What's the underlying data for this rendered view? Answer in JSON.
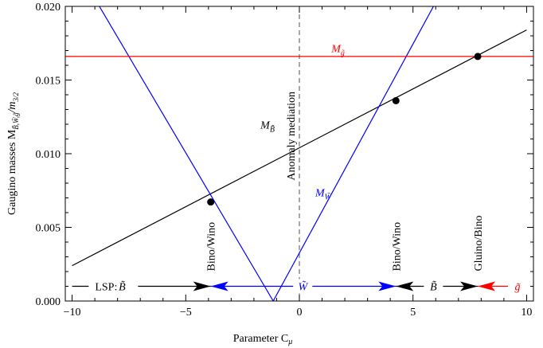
{
  "chart_data": {
    "type": "line",
    "xlabel": "Parameter C",
    "xlabel_sub": "μ",
    "ylabel": "Gaugino masses M",
    "ylabel_sub": "B̃,W̃,g̃",
    "ylabel_suffix": "/m",
    "ylabel_suffix_sub": "3/2",
    "xlim": [
      -10.3,
      10.3
    ],
    "ylim": [
      0,
      0.02
    ],
    "x_ticks": [
      {
        "value": -10,
        "label": "−10"
      },
      {
        "value": -5,
        "label": "−5"
      },
      {
        "value": 0,
        "label": "0"
      },
      {
        "value": 5,
        "label": "5"
      },
      {
        "value": 10,
        "label": "10"
      }
    ],
    "y_ticks": [
      {
        "value": 0.0,
        "label": "0.000"
      },
      {
        "value": 0.005,
        "label": "0.005"
      },
      {
        "value": 0.01,
        "label": "0.010"
      },
      {
        "value": 0.015,
        "label": "0.015"
      },
      {
        "value": 0.02,
        "label": "0.020"
      }
    ],
    "series": [
      {
        "name": "M_B̃",
        "label_main": "M",
        "label_sub": "B̃",
        "color": "#000000",
        "x": [
          -10,
          10
        ],
        "y": [
          0.0024,
          0.0184
        ],
        "label_at": [
          -1.4,
          0.0117
        ]
      },
      {
        "name": "M_W̃",
        "label_main": "M",
        "label_sub": "W̃",
        "color": "#0000ff",
        "x": [
          -8.8,
          -1.15,
          5.9
        ],
        "y": [
          0.02,
          0.0,
          0.02
        ],
        "label_at": [
          1.05,
          0.0071
        ]
      },
      {
        "name": "M_g̃",
        "label_main": "M",
        "label_sub": "g̃",
        "color": "#ff0000",
        "x": [
          -10.3,
          10.3
        ],
        "y": [
          0.0166,
          0.0166
        ],
        "label_at": [
          1.7,
          0.0169
        ]
      }
    ],
    "crossing_points": [
      {
        "x": -3.9,
        "y": 0.00672
      },
      {
        "x": 4.25,
        "y": 0.0136
      },
      {
        "x": 7.85,
        "y": 0.0166
      }
    ],
    "vertical_line": {
      "x": 0,
      "label": "Anomaly mediation",
      "style": "dashed",
      "color": "#555555"
    },
    "transition_labels": [
      {
        "x": -3.9,
        "text": "Bino/Wino"
      },
      {
        "x": 4.25,
        "text": "Bino/Wino"
      },
      {
        "x": 7.85,
        "text": "Gluino/Bino"
      }
    ],
    "lsp_bar": {
      "y": 0.001,
      "prefix": "LSP: ",
      "segments": [
        {
          "from": -10,
          "to": -3.9,
          "color": "#000000",
          "label": "B̃",
          "label_x": -7.8
        },
        {
          "from": -3.9,
          "to": 4.25,
          "color": "#0000ff",
          "label": "W̃",
          "label_x": 0.15
        },
        {
          "from": 4.25,
          "to": 7.85,
          "color": "#000000",
          "label": "B̃",
          "label_x": 5.9
        },
        {
          "from": 7.85,
          "to": 10,
          "color": "#ff0000",
          "label": "g̃",
          "label_x": 9.6
        }
      ]
    }
  }
}
